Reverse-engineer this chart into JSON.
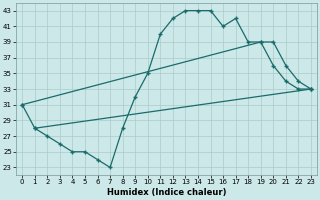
{
  "xlabel": "Humidex (Indice chaleur)",
  "bg_color": "#cce8e8",
  "grid_color": "#aacccc",
  "line_color": "#1a6b6b",
  "xlim": [
    -0.5,
    23.5
  ],
  "ylim": [
    22,
    44
  ],
  "xticks": [
    0,
    1,
    2,
    3,
    4,
    5,
    6,
    7,
    8,
    9,
    10,
    11,
    12,
    13,
    14,
    15,
    16,
    17,
    18,
    19,
    20,
    21,
    22,
    23
  ],
  "yticks": [
    23,
    25,
    27,
    29,
    31,
    33,
    35,
    37,
    39,
    41,
    43
  ],
  "curve1_x": [
    0,
    1,
    2,
    3,
    4,
    5,
    6,
    7,
    8,
    9,
    10,
    11,
    12,
    13,
    14,
    15,
    16,
    17,
    18,
    19,
    20,
    21,
    22,
    23
  ],
  "curve1_y": [
    31,
    28,
    27,
    26,
    25,
    25,
    24,
    23,
    28,
    32,
    35,
    40,
    42,
    43,
    43,
    43,
    41,
    42,
    39,
    39,
    36,
    34,
    33,
    33
  ],
  "curve2_x": [
    0,
    19,
    20,
    21,
    22,
    23
  ],
  "curve2_y": [
    31,
    39,
    39,
    36,
    34,
    33
  ],
  "curve3_x": [
    1,
    23
  ],
  "curve3_y": [
    28,
    33
  ],
  "figsize": [
    3.2,
    2.0
  ],
  "dpi": 100
}
